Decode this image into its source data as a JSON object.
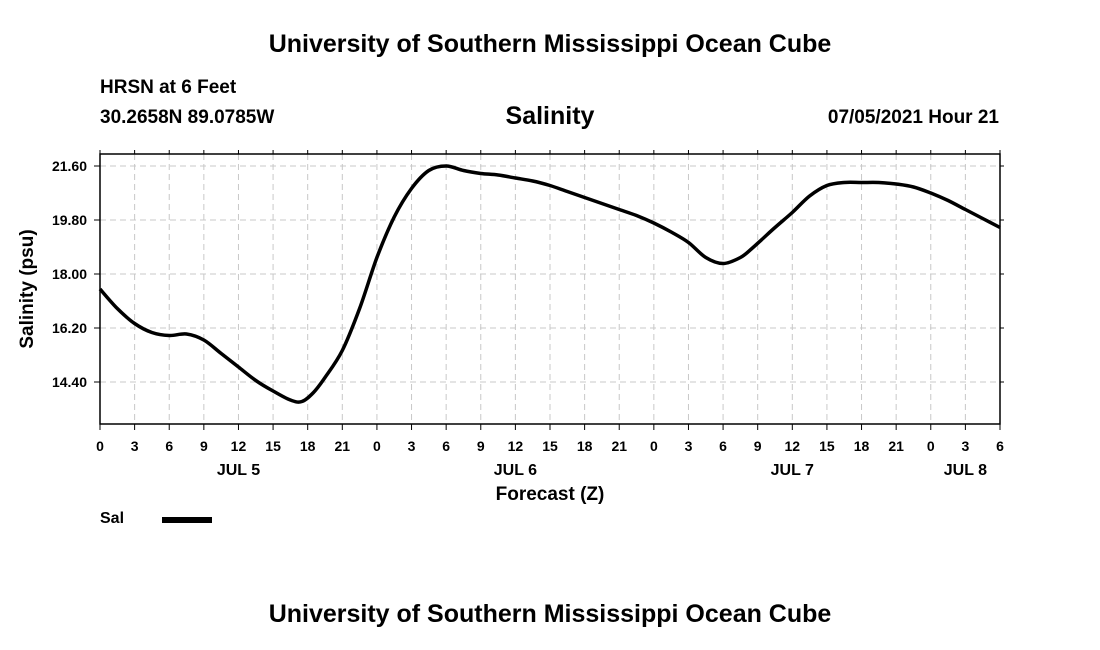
{
  "header": {
    "title": "University of Southern Mississippi Ocean Cube",
    "station": "HRSN at 6 Feet",
    "coordinates": "30.2658N  89.0785W",
    "datetime": "07/05/2021 Hour 21"
  },
  "footer": {
    "title": "University of Southern Mississippi Ocean Cube"
  },
  "legend": {
    "label": "Sal",
    "color": "#000000"
  },
  "chart_data": {
    "type": "line",
    "title": "Salinity",
    "xlabel": "Forecast (Z)",
    "ylabel": "Salinity (psu)",
    "x_unit": "hours since JUL 5 00Z",
    "xlim": [
      0,
      78
    ],
    "ylim": [
      13.0,
      22.0
    ],
    "grid": true,
    "yticks": [
      14.4,
      16.2,
      18.0,
      19.8,
      21.6
    ],
    "ytick_labels": [
      "14.40",
      "16.20",
      "18.00",
      "19.80",
      "21.60"
    ],
    "xticks": [
      0,
      3,
      6,
      9,
      12,
      15,
      18,
      21,
      24,
      27,
      30,
      33,
      36,
      39,
      42,
      45,
      48,
      51,
      54,
      57,
      60,
      63,
      66,
      69,
      72,
      75,
      78
    ],
    "xtick_labels": [
      "0",
      "3",
      "6",
      "9",
      "12",
      "15",
      "18",
      "21",
      "0",
      "3",
      "6",
      "9",
      "12",
      "15",
      "18",
      "21",
      "0",
      "3",
      "6",
      "9",
      "12",
      "15",
      "18",
      "21",
      "0",
      "3",
      "6"
    ],
    "day_labels": [
      {
        "label": "JUL 5",
        "x": 12
      },
      {
        "label": "JUL 6",
        "x": 36
      },
      {
        "label": "JUL 7",
        "x": 60
      },
      {
        "label": "JUL 8",
        "x": 75
      }
    ],
    "series": [
      {
        "name": "Sal",
        "x": [
          0,
          1.5,
          3,
          4.5,
          6,
          7.5,
          9,
          10.5,
          12,
          13.5,
          15,
          16.5,
          17.5,
          18.5,
          19.5,
          21,
          22.5,
          24,
          25.5,
          27,
          28.5,
          30,
          31.5,
          33,
          34.5,
          36,
          37.5,
          39,
          40.5,
          42,
          43.5,
          45,
          46.5,
          48,
          49.5,
          51,
          52.5,
          54,
          55.5,
          56.5,
          57.5,
          58.5,
          60,
          61.5,
          63,
          64.5,
          66,
          67.5,
          69,
          70.5,
          72,
          73.5,
          75,
          76.5,
          78
        ],
        "values": [
          17.5,
          16.85,
          16.35,
          16.05,
          15.95,
          16.0,
          15.8,
          15.35,
          14.9,
          14.45,
          14.1,
          13.8,
          13.75,
          14.05,
          14.55,
          15.45,
          16.85,
          18.55,
          19.9,
          20.85,
          21.45,
          21.6,
          21.45,
          21.35,
          21.3,
          21.2,
          21.1,
          20.95,
          20.75,
          20.55,
          20.35,
          20.15,
          19.95,
          19.7,
          19.4,
          19.05,
          18.55,
          18.35,
          18.55,
          18.85,
          19.2,
          19.55,
          20.05,
          20.6,
          20.95,
          21.05,
          21.05,
          21.05,
          21.0,
          20.9,
          20.7,
          20.45,
          20.15,
          19.85,
          19.55
        ]
      }
    ]
  }
}
